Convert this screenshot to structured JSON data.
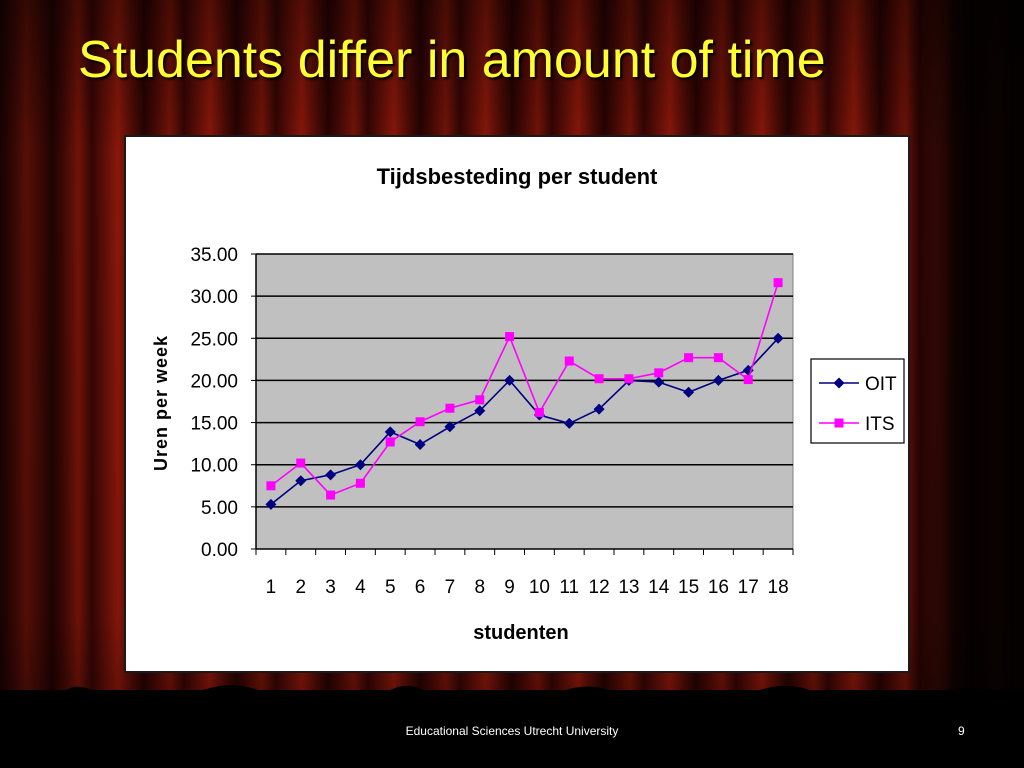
{
  "slide": {
    "title": "Students differ in amount of time",
    "footer": "Educational Sciences Utrecht University",
    "page_number": "9"
  },
  "colors": {
    "title": "#ffff33",
    "curtain": "#7a1408",
    "plot_background": "#c0c0c0",
    "oit": "#000080",
    "its": "#ff00ff"
  },
  "chart_data": {
    "type": "line",
    "title": "Tijdsbesteding per student",
    "xlabel": "studenten",
    "ylabel": "Uren per week",
    "categories": [
      "1",
      "2",
      "3",
      "4",
      "5",
      "6",
      "7",
      "8",
      "9",
      "10",
      "11",
      "12",
      "13",
      "14",
      "15",
      "16",
      "17",
      "18"
    ],
    "ylim": [
      0,
      35
    ],
    "yticks": [
      "0.00",
      "5.00",
      "10.00",
      "15.00",
      "20.00",
      "25.00",
      "30.00",
      "35.00"
    ],
    "grid": true,
    "legend": "right",
    "series": [
      {
        "name": "OIT",
        "color": "#000080",
        "marker": "diamond",
        "values": [
          5.3,
          8.1,
          8.8,
          10.0,
          13.9,
          12.4,
          14.5,
          16.4,
          20.0,
          15.9,
          14.9,
          16.6,
          20.0,
          19.8,
          18.6,
          20.0,
          21.2,
          25.0
        ]
      },
      {
        "name": "ITS",
        "color": "#ff00ff",
        "marker": "square",
        "values": [
          7.5,
          10.2,
          6.4,
          7.8,
          12.7,
          15.1,
          16.7,
          17.7,
          25.2,
          16.2,
          22.3,
          20.2,
          20.2,
          20.9,
          22.7,
          22.7,
          20.1,
          31.6
        ]
      }
    ]
  }
}
